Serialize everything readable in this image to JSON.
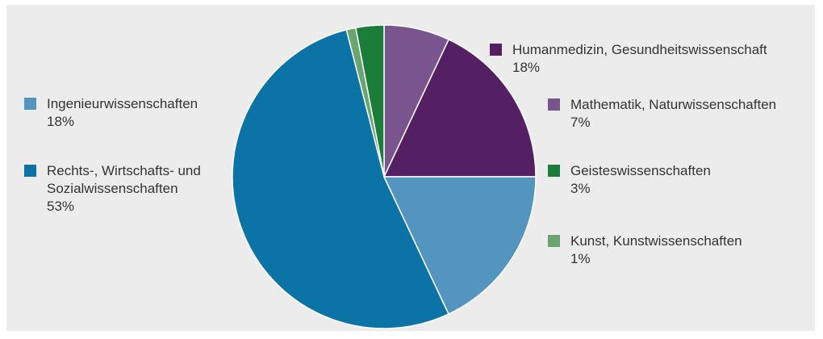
{
  "chart_data": {
    "type": "pie",
    "title": "",
    "slices": [
      {
        "label": "Humanmedizin, Gesundheitswissenschaft",
        "percent_label": "18%",
        "value": 18,
        "color": "#541f63"
      },
      {
        "label": "Mathematik, Naturwissenschaften",
        "percent_label": "7%",
        "value": 7,
        "color": "#7a548d"
      },
      {
        "label": "Geisteswissenschaften",
        "percent_label": "3%",
        "value": 3,
        "color": "#1a7d3a"
      },
      {
        "label": "Kunst, Kunstwissenschaften",
        "percent_label": "1%",
        "value": 1,
        "color": "#6aa56f"
      },
      {
        "label": "Rechts-, Wirtschafts- und\nSozialwissenschaften",
        "percent_label": "53%",
        "value": 53,
        "color": "#0b73a5"
      },
      {
        "label": "Ingenieurwissenschaften",
        "percent_label": "18%",
        "value": 18,
        "color": "#5495c0"
      }
    ],
    "legend_placement": "both-sides"
  }
}
